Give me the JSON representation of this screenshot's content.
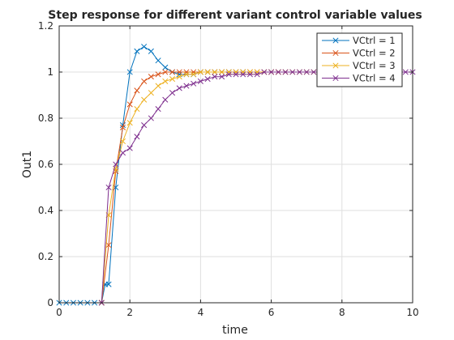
{
  "chart_data": {
    "type": "line",
    "title": "Step response for different variant control variable values",
    "xlabel": "time",
    "ylabel": "Out1",
    "xlim": [
      0,
      10
    ],
    "ylim": [
      0,
      1.2
    ],
    "xticks": [
      0,
      2,
      4,
      6,
      8,
      10
    ],
    "yticks": [
      0,
      0.2,
      0.4,
      0.6,
      0.8,
      1,
      1.2
    ],
    "xtick_labels": [
      "0",
      "2",
      "4",
      "6",
      "8",
      "10"
    ],
    "ytick_labels": [
      "0",
      "0.2",
      "0.4",
      "0.6",
      "0.8",
      "1",
      "1.2"
    ],
    "grid": true,
    "legend_position": "top-right",
    "marker": "x",
    "series": [
      {
        "name": "VCtrl = 1",
        "color": "#0072BD",
        "x": [
          0,
          0.2,
          0.4,
          0.6,
          0.8,
          1.0,
          1.2,
          1.3,
          1.4,
          1.6,
          1.8,
          2.0,
          2.2,
          2.4,
          2.6,
          2.8,
          3.0,
          3.2,
          3.4,
          3.6,
          3.8,
          4.0,
          4.2,
          4.4,
          4.6,
          4.8,
          5.0,
          5.2
        ],
        "y": [
          0,
          0,
          0,
          0,
          0,
          0,
          0,
          0.08,
          0.08,
          0.5,
          0.77,
          1.0,
          1.09,
          1.11,
          1.09,
          1.05,
          1.02,
          1.0,
          0.99,
          0.99,
          0.99,
          1.0,
          1.0,
          1.0,
          1.0,
          1.0,
          1.0,
          1.0
        ]
      },
      {
        "name": "VCtrl = 2",
        "color": "#D95319",
        "x": [
          1.2,
          1.4,
          1.6,
          1.8,
          2.0,
          2.2,
          2.4,
          2.6,
          2.8,
          3.0,
          3.2,
          3.4,
          3.6,
          3.8,
          4.0,
          4.2,
          4.4,
          4.6,
          4.8,
          5.0,
          5.2,
          5.4,
          5.6,
          5.8,
          6.0,
          6.2,
          6.4
        ],
        "y": [
          0,
          0.25,
          0.57,
          0.76,
          0.86,
          0.92,
          0.96,
          0.98,
          0.99,
          1.0,
          1.0,
          1.0,
          1.0,
          1.0,
          1.0,
          1.0,
          1.0,
          1.0,
          1.0,
          1.0,
          1.0,
          1.0,
          1.0,
          1.0,
          1.0,
          1.0,
          1.0
        ]
      },
      {
        "name": "VCtrl = 3",
        "color": "#EDB120",
        "x": [
          1.2,
          1.4,
          1.6,
          1.8,
          2.0,
          2.2,
          2.4,
          2.6,
          2.8,
          3.0,
          3.2,
          3.4,
          3.6,
          3.8,
          4.0,
          4.2,
          4.4,
          4.6,
          4.8,
          5.0,
          5.2,
          5.4,
          5.6,
          5.8,
          6.0,
          6.2,
          6.4,
          6.6,
          6.8,
          7.0,
          7.2,
          7.4,
          7.6,
          7.8,
          8.0,
          8.2,
          8.4
        ],
        "y": [
          0,
          0.38,
          0.58,
          0.7,
          0.78,
          0.84,
          0.88,
          0.91,
          0.94,
          0.96,
          0.97,
          0.98,
          0.99,
          0.99,
          1.0,
          1.0,
          1.0,
          1.0,
          1.0,
          1.0,
          1.0,
          1.0,
          1.0,
          1.0,
          1.0,
          1.0,
          1.0,
          1.0,
          1.0,
          1.0,
          1.0,
          1.0,
          1.0,
          1.0,
          1.0,
          1.0,
          1.0
        ]
      },
      {
        "name": "VCtrl = 4",
        "color": "#7E2F8E",
        "x": [
          1.2,
          1.4,
          1.6,
          1.8,
          2.0,
          2.2,
          2.4,
          2.6,
          2.8,
          3.0,
          3.2,
          3.4,
          3.6,
          3.8,
          4.0,
          4.2,
          4.4,
          4.6,
          4.8,
          5.0,
          5.2,
          5.4,
          5.6,
          5.8,
          6.0,
          6.2,
          6.4,
          6.6,
          6.8,
          7.0,
          7.2,
          7.4,
          7.6,
          7.8,
          8.0,
          8.2,
          8.4,
          8.6,
          8.8,
          9.0,
          9.2,
          9.4,
          9.6,
          9.8,
          10.0
        ],
        "y": [
          0,
          0.5,
          0.6,
          0.65,
          0.67,
          0.72,
          0.77,
          0.8,
          0.84,
          0.88,
          0.91,
          0.93,
          0.94,
          0.95,
          0.96,
          0.97,
          0.98,
          0.98,
          0.99,
          0.99,
          0.99,
          0.99,
          0.99,
          1.0,
          1.0,
          1.0,
          1.0,
          1.0,
          1.0,
          1.0,
          1.0,
          1.0,
          1.0,
          1.0,
          1.0,
          1.0,
          1.0,
          1.0,
          1.0,
          1.0,
          1.0,
          1.0,
          1.0,
          1.0,
          1.0
        ]
      }
    ]
  }
}
